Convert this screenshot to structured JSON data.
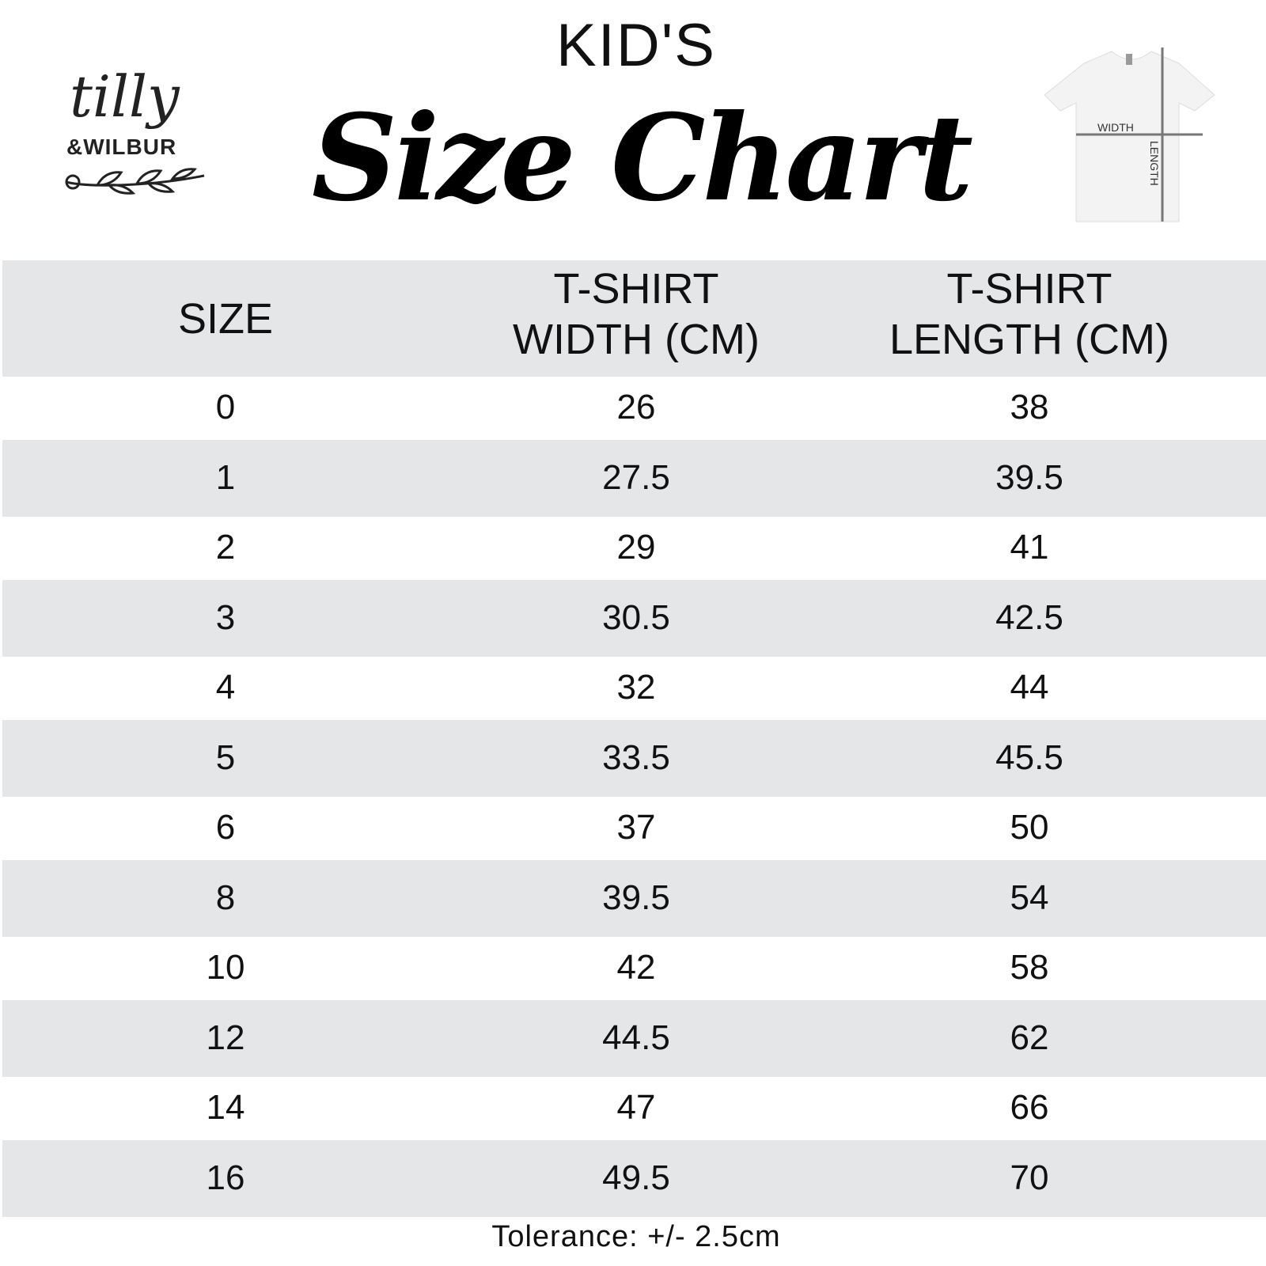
{
  "header": {
    "kids": "KID'S",
    "title": "Size Chart"
  },
  "logo": {
    "line1": "tilly",
    "line2": "&WILBUR"
  },
  "shirt_diagram": {
    "width_label": "WIDTH",
    "length_label": "LENGTH"
  },
  "table": {
    "columns": [
      {
        "line1": "",
        "line2": "SIZE"
      },
      {
        "line1": "T-SHIRT",
        "line2": "WIDTH (CM)"
      },
      {
        "line1": "T-SHIRT",
        "line2": "LENGTH (CM)"
      }
    ],
    "rows": [
      [
        "0",
        "26",
        "38"
      ],
      [
        "1",
        "27.5",
        "39.5"
      ],
      [
        "2",
        "29",
        "41"
      ],
      [
        "3",
        "30.5",
        "42.5"
      ],
      [
        "4",
        "32",
        "44"
      ],
      [
        "5",
        "33.5",
        "45.5"
      ],
      [
        "6",
        "37",
        "50"
      ],
      [
        "8",
        "39.5",
        "54"
      ],
      [
        "10",
        "42",
        "58"
      ],
      [
        "12",
        "44.5",
        "62"
      ],
      [
        "14",
        "47",
        "66"
      ],
      [
        "16",
        "49.5",
        "70"
      ]
    ],
    "stripe_color": "#e5e6e8"
  },
  "footer": {
    "tolerance": "Tolerance: +/- 2.5cm"
  }
}
